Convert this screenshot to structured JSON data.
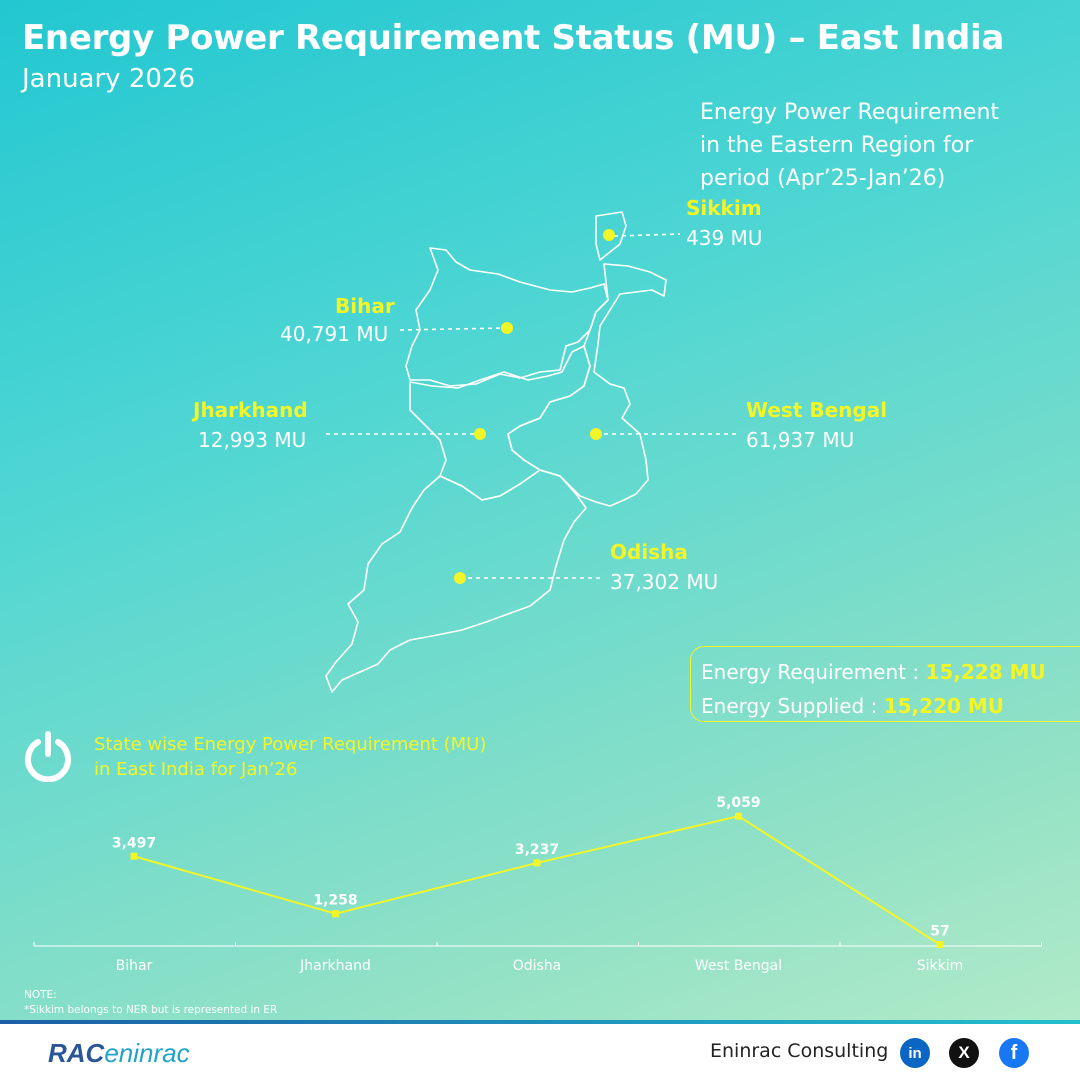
{
  "header": {
    "title": "Energy Power Requirement Status (MU) – East India",
    "subtitle": "January 2026"
  },
  "map_panel": {
    "period_line1": "Energy Power Requirement",
    "period_line2": "in the Eastern Region for",
    "period_line3": "period (Apr’25-Jan’26)",
    "states": [
      {
        "name": "Sikkim",
        "value": "439 MU"
      },
      {
        "name": "Bihar",
        "value": "40,791 MU"
      },
      {
        "name": "Jharkhand",
        "value": "12,993 MU"
      },
      {
        "name": "West Bengal",
        "value": "61,937 MU"
      },
      {
        "name": "Odisha",
        "value": "37,302 MU"
      }
    ]
  },
  "summary": {
    "req_label": "Energy Requirement : ",
    "req_value": "15,228 MU",
    "sup_label": "Energy Supplied : ",
    "sup_value": "15,220 MU"
  },
  "section": {
    "title_line1": "State wise Energy Power Requirement (MU)",
    "title_line2": "in East India for Jan’26",
    "icon": "power-icon"
  },
  "chart_data": {
    "type": "line",
    "categories": [
      "Bihar",
      "Jharkhand",
      "Odisha",
      "West Bengal",
      "Sikkim"
    ],
    "values": [
      3497,
      1258,
      3237,
      5059,
      57
    ],
    "data_labels": [
      "3,497",
      "1,258",
      "3,237",
      "5,059",
      "57"
    ],
    "ylim": [
      0,
      5300
    ],
    "line_color": "#f2f527",
    "grid": false
  },
  "note": {
    "line1": "NOTE:",
    "line2": "*Sikkim belongs to NER but is represented in ER"
  },
  "footer": {
    "logo_text": "RAC",
    "logo_text2": "eninrac",
    "brand": "Eninrac Consulting",
    "social_icons": [
      "linkedin-icon",
      "x-icon",
      "facebook-icon"
    ]
  },
  "colors": {
    "accent": "#f2f527",
    "background_start": "#22c7d1",
    "background_end": "#b8ecc8"
  }
}
